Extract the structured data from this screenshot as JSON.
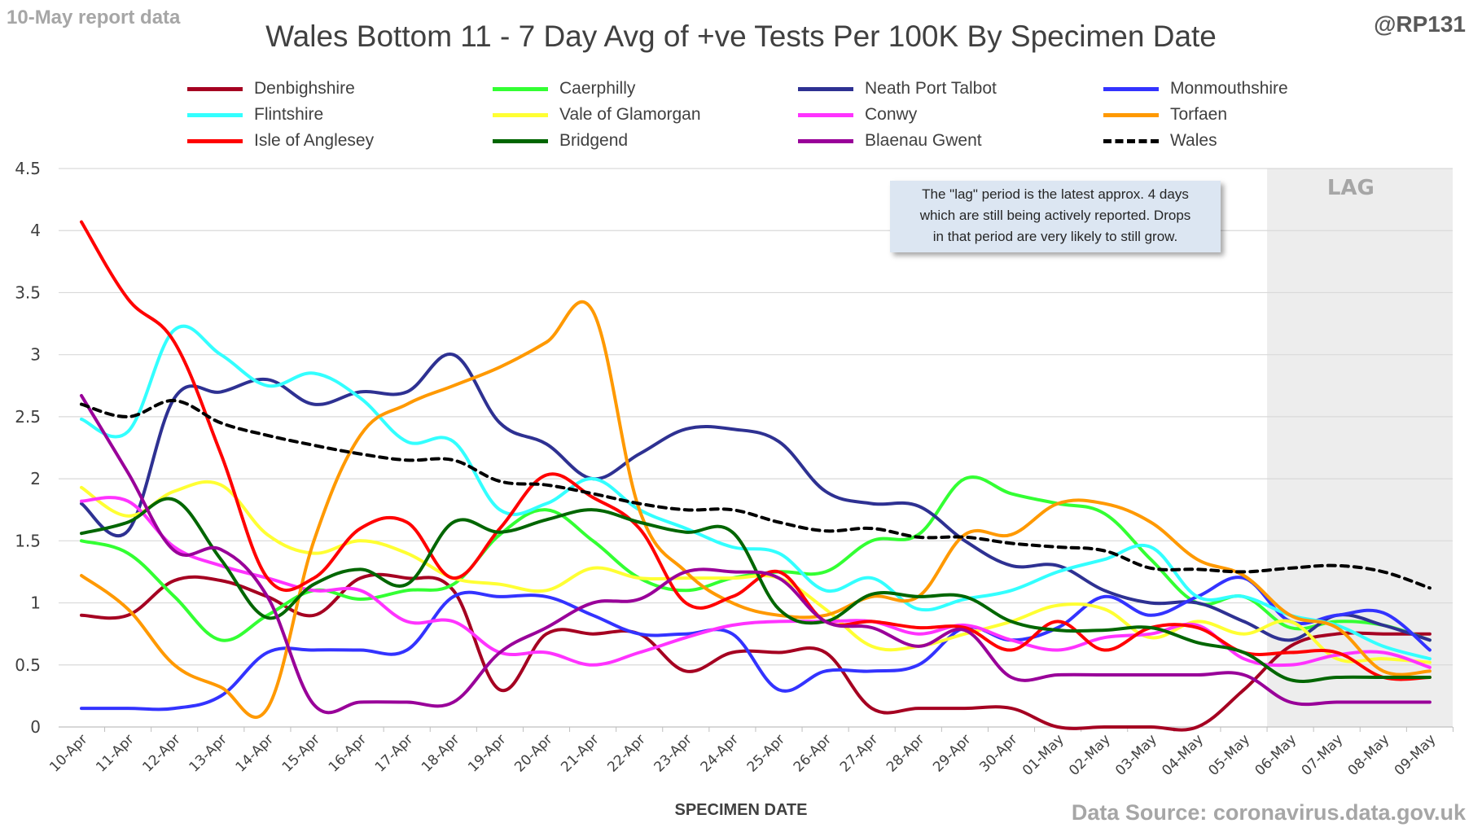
{
  "header": {
    "report_label": "10-May report data",
    "handle": "@RP131",
    "source": "Data Source: coronavirus.data.gov.uk"
  },
  "chart_data": {
    "type": "line",
    "title": "Wales Bottom 11 - 7 Day Avg of +ve Tests Per 100K By Specimen Date",
    "xlabel": "SPECIMEN DATE",
    "ylabel": "",
    "ylim": [
      0,
      4.5
    ],
    "yticks": [
      0,
      0.5,
      1,
      1.5,
      2,
      2.5,
      3,
      3.5,
      4,
      4.5
    ],
    "ytick_labels": [
      "0",
      "0.5",
      "1",
      "1.5",
      "2",
      "2.5",
      "3",
      "3.5",
      "4",
      "4.5"
    ],
    "grid": true,
    "legend_position": "top",
    "categories": [
      "10-Apr",
      "11-Apr",
      "12-Apr",
      "13-Apr",
      "14-Apr",
      "15-Apr",
      "16-Apr",
      "17-Apr",
      "18-Apr",
      "19-Apr",
      "20-Apr",
      "21-Apr",
      "22-Apr",
      "23-Apr",
      "24-Apr",
      "25-Apr",
      "26-Apr",
      "27-Apr",
      "28-Apr",
      "29-Apr",
      "30-Apr",
      "01-May",
      "02-May",
      "03-May",
      "04-May",
      "05-May",
      "06-May",
      "07-May",
      "08-May",
      "09-May"
    ],
    "lag": {
      "label": "LAG",
      "start_index": 26,
      "end_index": 29
    },
    "annotation": [
      "The \"lag\" period is the latest approx. 4 days",
      "which are still being actively reported.  Drops",
      "in that period are very likely to still grow."
    ],
    "series": [
      {
        "name": "Denbighshire",
        "color": "#a50021",
        "dashed": false,
        "values": [
          0.9,
          0.9,
          1.18,
          1.18,
          1.05,
          0.9,
          1.2,
          1.2,
          1.1,
          0.3,
          0.75,
          0.75,
          0.75,
          0.45,
          0.6,
          0.6,
          0.6,
          0.15,
          0.15,
          0.15,
          0.15,
          0.0,
          0.0,
          0.0,
          0.0,
          0.3,
          0.65,
          0.75,
          0.75,
          0.75
        ]
      },
      {
        "name": "Caerphilly",
        "color": "#33ff33",
        "dashed": false,
        "values": [
          1.5,
          1.4,
          1.05,
          0.7,
          0.9,
          1.1,
          1.03,
          1.1,
          1.15,
          1.55,
          1.75,
          1.5,
          1.2,
          1.1,
          1.2,
          1.25,
          1.25,
          1.5,
          1.55,
          2.0,
          1.88,
          1.8,
          1.72,
          1.35,
          1.0,
          1.05,
          0.8,
          0.85,
          0.82,
          0.7
        ]
      },
      {
        "name": "Neath Port Talbot",
        "color": "#2e3192",
        "dashed": false,
        "values": [
          1.8,
          1.58,
          2.65,
          2.7,
          2.8,
          2.6,
          2.7,
          2.7,
          3.0,
          2.45,
          2.28,
          2.0,
          2.2,
          2.4,
          2.4,
          2.3,
          1.9,
          1.8,
          1.78,
          1.5,
          1.3,
          1.3,
          1.1,
          1.0,
          1.0,
          0.85,
          0.7,
          0.9,
          0.82,
          0.7
        ]
      },
      {
        "name": "Monmouthshire",
        "color": "#3333ff",
        "dashed": false,
        "values": [
          0.15,
          0.15,
          0.15,
          0.25,
          0.6,
          0.62,
          0.62,
          0.62,
          1.05,
          1.05,
          1.05,
          0.9,
          0.75,
          0.75,
          0.75,
          0.3,
          0.45,
          0.45,
          0.5,
          0.8,
          0.7,
          0.8,
          1.05,
          0.9,
          1.05,
          1.2,
          0.85,
          0.9,
          0.92,
          0.62
        ]
      },
      {
        "name": "Flintshire",
        "color": "#33ffff",
        "dashed": false,
        "values": [
          2.48,
          2.38,
          3.2,
          3.0,
          2.75,
          2.85,
          2.65,
          2.3,
          2.3,
          1.75,
          1.8,
          2.0,
          1.75,
          1.6,
          1.45,
          1.4,
          1.1,
          1.2,
          0.95,
          1.03,
          1.1,
          1.25,
          1.35,
          1.45,
          1.05,
          1.05,
          0.9,
          0.82,
          0.65,
          0.55
        ]
      },
      {
        "name": "Vale of Glamorgan",
        "color": "#ffff33",
        "dashed": false,
        "values": [
          1.93,
          1.7,
          1.9,
          1.95,
          1.55,
          1.4,
          1.5,
          1.4,
          1.2,
          1.15,
          1.1,
          1.28,
          1.2,
          1.2,
          1.2,
          1.2,
          0.95,
          0.65,
          0.65,
          0.75,
          0.85,
          0.98,
          0.95,
          0.72,
          0.85,
          0.75,
          0.85,
          0.55,
          0.55,
          0.52
        ]
      },
      {
        "name": "Conwy",
        "color": "#ff33ff",
        "dashed": false,
        "values": [
          1.82,
          1.82,
          1.45,
          1.3,
          1.2,
          1.1,
          1.1,
          0.85,
          0.85,
          0.6,
          0.6,
          0.5,
          0.6,
          0.72,
          0.82,
          0.85,
          0.85,
          0.85,
          0.75,
          0.82,
          0.7,
          0.62,
          0.72,
          0.75,
          0.82,
          0.55,
          0.5,
          0.58,
          0.6,
          0.48
        ]
      },
      {
        "name": "Torfaen",
        "color": "#ff9900",
        "dashed": false,
        "values": [
          1.22,
          0.95,
          0.5,
          0.32,
          0.15,
          1.5,
          2.35,
          2.6,
          2.75,
          2.9,
          3.1,
          3.35,
          1.75,
          1.25,
          1.0,
          0.9,
          0.9,
          1.05,
          1.05,
          1.55,
          1.55,
          1.8,
          1.8,
          1.65,
          1.35,
          1.22,
          0.9,
          0.8,
          0.45,
          0.45
        ]
      },
      {
        "name": "Isle of Anglesey",
        "color": "#ff0000",
        "dashed": false,
        "values": [
          4.07,
          3.45,
          3.1,
          2.2,
          1.2,
          1.2,
          1.6,
          1.65,
          1.2,
          1.6,
          2.03,
          1.85,
          1.6,
          1.0,
          1.05,
          1.25,
          0.85,
          0.85,
          0.8,
          0.8,
          0.62,
          0.85,
          0.62,
          0.8,
          0.8,
          0.6,
          0.6,
          0.6,
          0.4,
          0.4
        ]
      },
      {
        "name": "Bridgend",
        "color": "#006600",
        "dashed": false,
        "values": [
          1.56,
          1.65,
          1.83,
          1.35,
          0.88,
          1.15,
          1.27,
          1.15,
          1.65,
          1.57,
          1.67,
          1.75,
          1.65,
          1.57,
          1.57,
          0.95,
          0.85,
          1.07,
          1.05,
          1.05,
          0.85,
          0.78,
          0.78,
          0.8,
          0.68,
          0.6,
          0.38,
          0.4,
          0.4,
          0.4
        ]
      },
      {
        "name": "Blaenau Gwent",
        "color": "#990099",
        "dashed": false,
        "values": [
          2.67,
          2.05,
          1.42,
          1.43,
          1.05,
          0.18,
          0.2,
          0.2,
          0.2,
          0.6,
          0.8,
          1.0,
          1.03,
          1.25,
          1.25,
          1.2,
          0.85,
          0.8,
          0.65,
          0.78,
          0.4,
          0.42,
          0.42,
          0.42,
          0.42,
          0.42,
          0.2,
          0.2,
          0.2,
          0.2
        ]
      },
      {
        "name": "Wales",
        "color": "#000000",
        "dashed": true,
        "values": [
          2.6,
          2.5,
          2.63,
          2.45,
          2.35,
          2.27,
          2.2,
          2.15,
          2.15,
          1.98,
          1.95,
          1.88,
          1.8,
          1.75,
          1.75,
          1.65,
          1.58,
          1.6,
          1.53,
          1.53,
          1.48,
          1.45,
          1.42,
          1.28,
          1.27,
          1.25,
          1.28,
          1.3,
          1.25,
          1.12
        ]
      }
    ]
  }
}
